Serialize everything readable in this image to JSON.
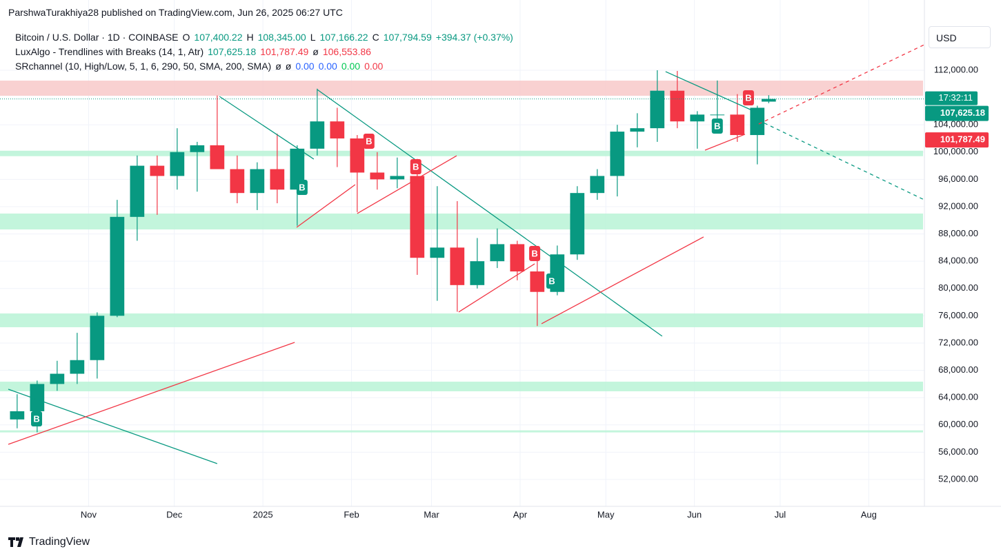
{
  "byline": "ParshwaTurakhiya28 published on TradingView.com, Jun 26, 2025 06:27 UTC",
  "footer": "TradingView",
  "currency_button": "USD",
  "legend": [
    [
      {
        "text": "Bitcoin / U.S. Dollar · 1D · COINBASE",
        "color": "#131722"
      },
      {
        "text": "O",
        "color": "#131722"
      },
      {
        "text": "107,400.22",
        "color": "#089981"
      },
      {
        "text": "H",
        "color": "#131722"
      },
      {
        "text": "108,345.00",
        "color": "#089981"
      },
      {
        "text": "L",
        "color": "#131722"
      },
      {
        "text": "107,166.22",
        "color": "#089981"
      },
      {
        "text": "C",
        "color": "#131722"
      },
      {
        "text": "107,794.59",
        "color": "#089981"
      },
      {
        "text": "+394.37 (+0.37%)",
        "color": "#089981"
      }
    ],
    [
      {
        "text": "LuxAlgo - Trendlines with Breaks (14, 1, Atr)",
        "color": "#131722"
      },
      {
        "text": "107,625.18",
        "color": "#089981"
      },
      {
        "text": "101,787.49",
        "color": "#f23645"
      },
      {
        "text": "ø",
        "color": "#131722"
      },
      {
        "text": "106,553.86",
        "color": "#f23645"
      }
    ],
    [
      {
        "text": "SRchannel (10, High/Low, 5, 1, 6, 290, 50, SMA, 200, SMA)",
        "color": "#131722"
      },
      {
        "text": "ø",
        "color": "#131722"
      },
      {
        "text": "ø",
        "color": "#131722"
      },
      {
        "text": "0.00",
        "color": "#2962ff"
      },
      {
        "text": "0.00",
        "color": "#2962ff"
      },
      {
        "text": "0.00",
        "color": "#00c853"
      },
      {
        "text": "0.00",
        "color": "#f23645"
      }
    ]
  ],
  "chart_data": {
    "type": "candlestick",
    "up_color": "#089981",
    "down_color": "#f23645",
    "candles": {
      "x": [
        6,
        13,
        20,
        27,
        34,
        41,
        48,
        55,
        62,
        69,
        76,
        83,
        90,
        97,
        104,
        111,
        118,
        125,
        132,
        139,
        146,
        153,
        160,
        167,
        174,
        181,
        188,
        195,
        202,
        209,
        216,
        223,
        230,
        237,
        244,
        251,
        258,
        265,
        269
      ],
      "open": [
        60800,
        62000,
        66000,
        67500,
        69500,
        76000,
        90500,
        98000,
        96500,
        100000,
        101000,
        97500,
        94000,
        97500,
        94500,
        100500,
        104500,
        102000,
        97000,
        96000,
        96500,
        84500,
        86000,
        80500,
        84000,
        86500,
        82500,
        79500,
        85000,
        94000,
        96500,
        103000,
        103500,
        109000,
        104500,
        105500,
        105500,
        102500,
        107400.22
      ],
      "high": [
        64500,
        66500,
        69400,
        73500,
        76500,
        93000,
        99500,
        99500,
        103500,
        101500,
        108300,
        99500,
        98500,
        102700,
        101000,
        109300,
        106500,
        102500,
        100000,
        99200,
        99000,
        95000,
        92800,
        87400,
        88800,
        87000,
        84500,
        86300,
        95000,
        97500,
        104000,
        105700,
        112000,
        111900,
        106000,
        110500,
        108500,
        106800,
        108345
      ],
      "low": [
        59500,
        58900,
        65000,
        66000,
        66800,
        75800,
        87000,
        90800,
        94500,
        94200,
        99500,
        92500,
        91500,
        92500,
        89200,
        99500,
        97800,
        91200,
        94500,
        94700,
        82000,
        78200,
        76600,
        80000,
        83000,
        81200,
        74500,
        79000,
        84200,
        93000,
        93500,
        100700,
        101500,
        103500,
        100500,
        103500,
        101500,
        98200,
        107166.22
      ],
      "close": [
        62000,
        66000,
        67500,
        69500,
        76000,
        90500,
        98000,
        96500,
        100000,
        101000,
        97500,
        94000,
        97500,
        94500,
        100500,
        104500,
        102000,
        97000,
        96000,
        96500,
        84500,
        86000,
        80500,
        84000,
        86500,
        82500,
        79500,
        85000,
        94000,
        96500,
        103000,
        103500,
        109000,
        104500,
        105500,
        105500,
        102500,
        106500,
        107794.59
      ]
    },
    "xlim": [
      0,
      323
    ],
    "xticks": [
      {
        "value": 31,
        "label": "Nov"
      },
      {
        "value": 61,
        "label": "Dec"
      },
      {
        "value": 92,
        "label": "2025"
      },
      {
        "value": 123,
        "label": "Feb"
      },
      {
        "value": 151,
        "label": "Mar"
      },
      {
        "value": 182,
        "label": "Apr"
      },
      {
        "value": 212,
        "label": "May"
      },
      {
        "value": 243,
        "label": "Jun"
      },
      {
        "value": 273,
        "label": "Jul"
      },
      {
        "value": 304,
        "label": "Aug"
      }
    ],
    "ylim": [
      48060,
      118260
    ],
    "yticks": [
      {
        "value": 52000,
        "label": "52,000.00"
      },
      {
        "value": 56000,
        "label": "56,000.00"
      },
      {
        "value": 60000,
        "label": "60,000.00"
      },
      {
        "value": 64000,
        "label": "64,000.00"
      },
      {
        "value": 68000,
        "label": "68,000.00"
      },
      {
        "value": 72000,
        "label": "72,000.00"
      },
      {
        "value": 76000,
        "label": "76,000.00"
      },
      {
        "value": 80000,
        "label": "80,000.00"
      },
      {
        "value": 84000,
        "label": "84,000.00"
      },
      {
        "value": 88000,
        "label": "88,000.00"
      },
      {
        "value": 92000,
        "label": "92,000.00"
      },
      {
        "value": 96000,
        "label": "96,000.00"
      },
      {
        "value": 100000,
        "label": "100,000.00"
      },
      {
        "value": 104000,
        "label": "104,000.00"
      },
      {
        "value": 112000,
        "label": "112,000.00"
      }
    ],
    "grid": true,
    "zones": [
      {
        "color": "#f8c9c9",
        "from": 108260,
        "to": 110480
      },
      {
        "color": "#b9f3d6",
        "from": 99400,
        "to": 100200
      },
      {
        "color": "#b9f3d6",
        "from": 88660,
        "to": 90990
      },
      {
        "color": "#b9f3d6",
        "from": 74320,
        "to": 76340
      },
      {
        "color": "#b9f3d6",
        "from": 64930,
        "to": 66340
      },
      {
        "color": "#b9f3d6",
        "from": 58900,
        "to": 59200
      }
    ],
    "trendlines": [
      {
        "color": "#089981",
        "dashed": false,
        "x": [
          2.9,
          76.0
        ],
        "y": [
          65230,
          54320
        ]
      },
      {
        "color": "#089981",
        "dashed": false,
        "x": [
          76.8,
          109.8
        ],
        "y": [
          108160,
          98970
        ]
      },
      {
        "color": "#089981",
        "dashed": false,
        "x": [
          111.0,
          231.7
        ],
        "y": [
          109170,
          73010
        ]
      },
      {
        "color": "#089981",
        "dashed": false,
        "x": [
          232.9,
          263.1
        ],
        "y": [
          111800,
          106140
        ]
      },
      {
        "color": "#089981",
        "dashed": true,
        "x": [
          263.1,
          323.4
        ],
        "y": [
          105130,
          93010
        ]
      },
      {
        "color": "#f23645",
        "dashed": false,
        "x": [
          2.9,
          103.1
        ],
        "y": [
          57150,
          72100
        ]
      },
      {
        "color": "#f23645",
        "dashed": false,
        "x": [
          103.8,
          124.3
        ],
        "y": [
          88970,
          95230
        ]
      },
      {
        "color": "#f23645",
        "dashed": false,
        "x": [
          125.0,
          159.8
        ],
        "y": [
          90990,
          99470
        ]
      },
      {
        "color": "#f23645",
        "dashed": false,
        "x": [
          160.5,
          187.1
        ],
        "y": [
          76550,
          83620
        ]
      },
      {
        "color": "#f23645",
        "dashed": false,
        "x": [
          189.5,
          246.2
        ],
        "y": [
          74830,
          87560
        ]
      },
      {
        "color": "#f23645",
        "dashed": false,
        "x": [
          246.7,
          260.7
        ],
        "y": [
          100280,
          102610
        ]
      },
      {
        "color": "#f23645",
        "dashed": true,
        "x": [
          265.5,
          323.4
        ],
        "y": [
          104120,
          115740
        ]
      }
    ],
    "signals": [
      {
        "text": "B",
        "color": "#089981",
        "x": 12.8,
        "y": 60890
      },
      {
        "text": "B",
        "color": "#089981",
        "x": 105.7,
        "y": 94830
      },
      {
        "text": "B",
        "color": "#089981",
        "x": 193.1,
        "y": 81090
      },
      {
        "text": "B",
        "color": "#089981",
        "x": 251.0,
        "y": 103820
      },
      {
        "text": "B",
        "color": "#f23645",
        "x": 129.1,
        "y": 101600
      },
      {
        "text": "B",
        "color": "#f23645",
        "x": 145.5,
        "y": 97860
      },
      {
        "text": "B",
        "color": "#f23645",
        "x": 187.1,
        "y": 85130
      },
      {
        "text": "B",
        "color": "#f23645",
        "x": 261.9,
        "y": 107960
      }
    ],
    "last_price": 107794.59,
    "countdown": "17:32:11",
    "price_labels": [
      {
        "value": 107625.18,
        "label": "107,625.18",
        "color": "#089981"
      },
      {
        "value": 101787.49,
        "label": "101,787.49",
        "color": "#f23645"
      }
    ]
  }
}
